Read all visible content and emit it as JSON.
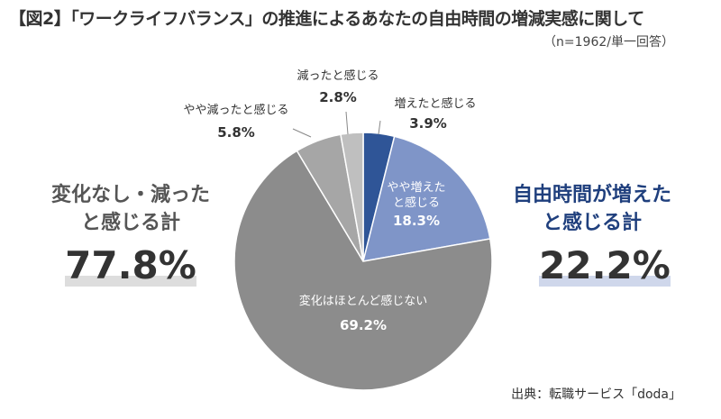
{
  "title": "【図2】「ワークライフバランス」の推進によるあなたの自由時間の増減実感に関して",
  "note": "（n=1962/単一回答）",
  "left_summary": {
    "line1": "変化なし・減った",
    "line2": "と感じる計",
    "value": "77.8%"
  },
  "right_summary": {
    "line1": "自由時間が増えた",
    "line2": "と感じる計",
    "value": "22.2%"
  },
  "source": "出典：転職サービス「doda」",
  "chart_data": {
    "type": "pie",
    "slices": [
      {
        "label": "増えたと感じる",
        "value": 3.9,
        "value_label": "3.9%",
        "color": "#2f5597"
      },
      {
        "label": "やや増えたと感じる",
        "value": 18.3,
        "value_label": "18.3%",
        "color": "#7f95c8"
      },
      {
        "label": "変化はほとんど感じない",
        "value": 69.2,
        "value_label": "69.2%",
        "color": "#8c8c8c"
      },
      {
        "label": "やや減ったと感じる",
        "value": 5.8,
        "value_label": "5.8%",
        "color": "#a6a6a6"
      },
      {
        "label": "減ったと感じる",
        "value": 2.8,
        "value_label": "2.8%",
        "color": "#bfbfbf"
      }
    ]
  }
}
